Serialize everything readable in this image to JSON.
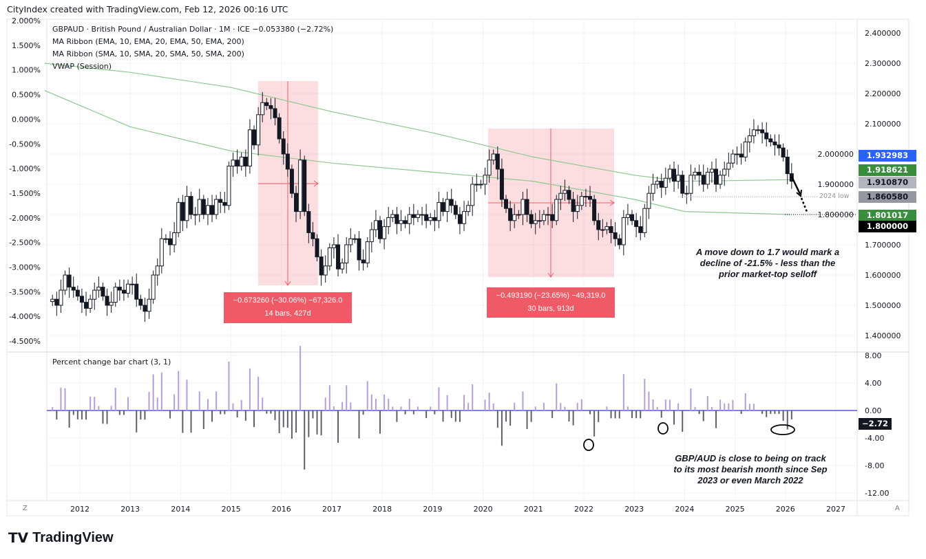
{
  "header": "CityIndex created with TradingView.com, Feb 12, 2026 00:16 UTC",
  "legend": [
    "GBPAUD · British Pound / Australian Dollar · 1M · ICE  −0.053380 (−2.72%)",
    "MA Ribbon (EMA, 10, EMA, 20, EMA, 50, EMA, 200)",
    "MA Ribbon (SMA, 10, SMA, 20, SMA, 50, SMA, 200)",
    "VWAP (Session)"
  ],
  "lower_pane_title": "Percent change bar chart (3, 1)",
  "logo_text": "TradingView",
  "scale_buttons": {
    "left": "Z",
    "right": "A"
  },
  "measure": [
    {
      "line1": "−0.673260 (−30.06%) −67,326.0",
      "line2": "14 bars, 427d"
    },
    {
      "line1": "−0.493190 (−23.65%) −49,319.0",
      "line2": "30 bars, 913d"
    }
  ],
  "notes": {
    "target": "A move down to 1.7 would mark a decline of -21.5% - less than the prior market-top selloff",
    "bearish": "GBP/AUD is close to being on track to its most bearish month since Sep 2023 or even March 2022",
    "low2024": "2024 low"
  },
  "price_labels": [
    {
      "value": "1.932983",
      "bg": "#2962ff",
      "fg": "#fff"
    },
    {
      "value": "1.918621",
      "bg": "#388e3c",
      "fg": "#fff"
    },
    {
      "value": "1.910870",
      "bg": "#b2b5be",
      "fg": "#131722"
    },
    {
      "value": "1.860580",
      "bg": "#9598a1",
      "fg": "#131722"
    },
    {
      "value": "1.801017",
      "bg": "#388e3c",
      "fg": "#fff"
    },
    {
      "value": "1.800000",
      "bg": "#000000",
      "fg": "#fff"
    }
  ],
  "lower_label": "−2.72",
  "colors": {
    "up": "#ffffff",
    "down": "#131722",
    "ma": "#8fc78f",
    "bar_up": "#b39ddb",
    "bar_down": "#5d606b",
    "measure": "#f05a66",
    "zero": "#0000c8"
  },
  "chart_data": {
    "type": "candlestick",
    "start": "2011-06",
    "closes": [
      1.52,
      1.5,
      1.55,
      1.6,
      1.56,
      1.55,
      1.53,
      1.51,
      1.49,
      1.52,
      1.55,
      1.56,
      1.53,
      1.5,
      1.51,
      1.56,
      1.55,
      1.54,
      1.57,
      1.57,
      1.52,
      1.5,
      1.48,
      1.52,
      1.6,
      1.63,
      1.72,
      1.72,
      1.7,
      1.74,
      1.84,
      1.78,
      1.86,
      1.8,
      1.8,
      1.85,
      1.8,
      1.83,
      1.8,
      1.85,
      1.84,
      1.83,
      1.96,
      1.98,
      1.96,
      1.99,
      1.96,
      2.08,
      2.03,
      2.13,
      2.17,
      2.16,
      2.15,
      2.12,
      2.05,
      2.0,
      1.95,
      1.87,
      1.81,
      1.98,
      1.81,
      1.74,
      1.72,
      1.66,
      1.6,
      1.63,
      1.69,
      1.7,
      1.62,
      1.64,
      1.7,
      1.72,
      1.72,
      1.65,
      1.64,
      1.71,
      1.75,
      1.78,
      1.72,
      1.76,
      1.79,
      1.8,
      1.77,
      1.78,
      1.77,
      1.8,
      1.79,
      1.8,
      1.8,
      1.78,
      1.79,
      1.78,
      1.84,
      1.81,
      1.85,
      1.83,
      1.8,
      1.77,
      1.81,
      1.83,
      1.9,
      1.9,
      1.9,
      1.93,
      1.98,
      2.0,
      1.95,
      1.85,
      1.82,
      1.78,
      1.8,
      1.8,
      1.85,
      1.8,
      1.77,
      1.78,
      1.78,
      1.8,
      1.8,
      1.78,
      1.85,
      1.87,
      1.88,
      1.85,
      1.81,
      1.83,
      1.86,
      1.86,
      1.85,
      1.78,
      1.75,
      1.75,
      1.76,
      1.74,
      1.72,
      1.7,
      1.79,
      1.8,
      1.78,
      1.76,
      1.74,
      1.82,
      1.87,
      1.9,
      1.91,
      1.89,
      1.92,
      1.95,
      1.91,
      1.93,
      1.87,
      1.87,
      1.93,
      1.94,
      1.93,
      1.9,
      1.94,
      1.95,
      1.9,
      1.93,
      1.95,
      1.97,
      2.0,
      2.0,
      1.99,
      2.04,
      2.06,
      2.08,
      2.08,
      2.07,
      2.05,
      2.04,
      2.03,
      2.02,
      1.99,
      1.935,
      1.91
    ],
    "ma_lines": [
      {
        "years": [
          2011.3,
          2013,
          2015,
          2017,
          2019,
          2021,
          2023,
          2024,
          2026.1
        ],
        "values": [
          2.3,
          2.27,
          2.22,
          2.14,
          2.07,
          1.99,
          1.93,
          1.91,
          1.915
        ]
      },
      {
        "years": [
          2011.3,
          2013,
          2015,
          2017,
          2019,
          2021,
          2023,
          2024,
          2026.1
        ],
        "values": [
          2.21,
          2.09,
          2.01,
          1.97,
          1.94,
          1.91,
          1.85,
          1.81,
          1.8
        ]
      }
    ],
    "x_ticks": [
      "2012",
      "2013",
      "2014",
      "2015",
      "2016",
      "2017",
      "2018",
      "2019",
      "2020",
      "2021",
      "2022",
      "2023",
      "2024",
      "2025",
      "2026",
      "2027"
    ],
    "price_ticks": [
      "2.400000",
      "2.300000",
      "2.200000",
      "2.100000",
      "2.000000",
      "1.900000",
      "1.800000",
      "1.700000",
      "1.600000",
      "1.500000",
      "1.400000"
    ],
    "pct_ticks": [
      "2.000%",
      "1.500%",
      "1.000%",
      "0.500%",
      "0.000%",
      "-0.500%",
      "-1.000%",
      "-1.500%",
      "-2.000%",
      "-2.500%",
      "-3.000%",
      "-3.500%",
      "-4.000%",
      "-4.500%"
    ],
    "lower_ticks": [
      "8.00",
      "4.00",
      "0.00",
      "-4.00",
      "-8.00",
      "-12.00"
    ],
    "ylim": [
      1.4,
      2.4
    ],
    "lower_ylim": [
      -12,
      8
    ]
  }
}
